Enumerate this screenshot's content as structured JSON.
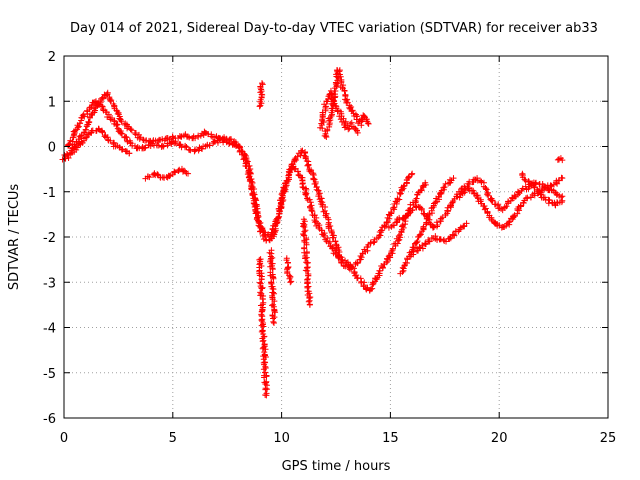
{
  "chart_data": {
    "type": "scatter",
    "title": "Day 014 of 2021, Sidereal Day-to-day VTEC variation (SDTVAR) for receiver ab33",
    "xlabel": "GPS time / hours",
    "ylabel": "SDTVAR / TECUs",
    "xlim": [
      0,
      25
    ],
    "ylim": [
      -6,
      2
    ],
    "xticks": [
      0,
      5,
      10,
      15,
      20,
      25
    ],
    "xtick_labels": [
      "0",
      "5",
      "10",
      "15",
      "20",
      "25"
    ],
    "yticks": [
      -6,
      -5,
      -4,
      -3,
      -2,
      -1,
      0,
      1,
      2
    ],
    "ytick_labels": [
      "-6",
      "-5",
      "-4",
      "-3",
      "-2",
      "-1",
      "0",
      "1",
      "2"
    ],
    "grid": true,
    "marker": "+",
    "series": [
      {
        "name": "SDTVAR",
        "color": "#ff0000",
        "tracks": [
          [
            [
              0.0,
              -0.2
            ],
            [
              0.3,
              -0.1
            ],
            [
              0.6,
              0.1
            ],
            [
              0.9,
              0.3
            ],
            [
              1.2,
              0.6
            ],
            [
              1.5,
              0.9
            ],
            [
              1.8,
              1.1
            ],
            [
              2.0,
              1.2
            ],
            [
              2.3,
              0.9
            ],
            [
              2.6,
              0.6
            ],
            [
              3.0,
              0.4
            ],
            [
              3.5,
              0.2
            ],
            [
              4.0,
              0.1
            ],
            [
              4.5,
              0.15
            ],
            [
              5.0,
              0.2
            ],
            [
              5.5,
              0.25
            ],
            [
              6.0,
              0.2
            ],
            [
              6.5,
              0.3
            ],
            [
              7.0,
              0.2
            ],
            [
              7.5,
              0.1
            ],
            [
              8.0,
              0.0
            ],
            [
              8.3,
              -0.2
            ],
            [
              8.5,
              -0.5
            ],
            [
              8.7,
              -1.0
            ],
            [
              8.9,
              -1.6
            ],
            [
              9.2,
              -1.9
            ],
            [
              9.5,
              -2.0
            ],
            [
              9.8,
              -1.6
            ],
            [
              10.1,
              -1.0
            ],
            [
              10.4,
              -0.5
            ],
            [
              10.7,
              -0.2
            ],
            [
              11.0,
              -0.1
            ],
            [
              11.3,
              -0.5
            ],
            [
              11.6,
              -0.9
            ],
            [
              11.9,
              -1.3
            ],
            [
              12.2,
              -1.8
            ],
            [
              12.5,
              -2.2
            ],
            [
              12.8,
              -2.5
            ],
            [
              13.1,
              -2.6
            ],
            [
              13.4,
              -2.8
            ],
            [
              13.7,
              -3.0
            ],
            [
              14.0,
              -3.2
            ],
            [
              14.3,
              -3.0
            ],
            [
              14.6,
              -2.7
            ],
            [
              15.0,
              -2.4
            ],
            [
              15.4,
              -2.0
            ],
            [
              15.8,
              -1.5
            ],
            [
              16.2,
              -1.1
            ],
            [
              16.6,
              -0.8
            ]
          ],
          [
            [
              0.2,
              0.0
            ],
            [
              0.5,
              0.3
            ],
            [
              0.8,
              0.6
            ],
            [
              1.1,
              0.8
            ],
            [
              1.4,
              1.0
            ],
            [
              1.7,
              0.9
            ],
            [
              2.0,
              0.7
            ],
            [
              2.4,
              0.5
            ],
            [
              2.8,
              0.2
            ],
            [
              3.2,
              0.0
            ],
            [
              3.6,
              -0.05
            ],
            [
              4.0,
              0.05
            ],
            [
              4.5,
              0.0
            ],
            [
              5.0,
              0.1
            ],
            [
              5.5,
              0.0
            ],
            [
              6.0,
              -0.1
            ],
            [
              6.5,
              0.0
            ],
            [
              7.0,
              0.1
            ],
            [
              7.4,
              0.2
            ],
            [
              7.8,
              0.1
            ],
            [
              8.2,
              -0.1
            ],
            [
              8.4,
              -0.4
            ],
            [
              8.6,
              -0.8
            ],
            [
              8.8,
              -1.3
            ],
            [
              9.0,
              -1.8
            ],
            [
              9.3,
              -2.1
            ],
            [
              9.6,
              -2.0
            ],
            [
              9.9,
              -1.4
            ],
            [
              10.2,
              -0.8
            ],
            [
              10.5,
              -0.4
            ],
            [
              10.8,
              -0.6
            ],
            [
              11.1,
              -1.0
            ],
            [
              11.4,
              -1.4
            ],
            [
              11.7,
              -1.8
            ],
            [
              12.0,
              -2.0
            ],
            [
              12.4,
              -2.3
            ],
            [
              12.8,
              -2.6
            ],
            [
              13.2,
              -2.7
            ],
            [
              13.6,
              -2.5
            ],
            [
              14.0,
              -2.2
            ],
            [
              14.4,
              -2.0
            ],
            [
              14.8,
              -1.7
            ],
            [
              15.2,
              -1.3
            ],
            [
              15.6,
              -0.9
            ],
            [
              16.0,
              -0.6
            ]
          ],
          [
            [
              0.0,
              -0.3
            ],
            [
              0.4,
              -0.1
            ],
            [
              0.8,
              0.1
            ],
            [
              1.2,
              0.3
            ],
            [
              1.6,
              0.4
            ],
            [
              2.0,
              0.2
            ],
            [
              2.4,
              0.0
            ],
            [
              2.8,
              -0.1
            ],
            [
              3.0,
              -0.15
            ]
          ],
          [
            [
              3.8,
              -0.7
            ],
            [
              4.2,
              -0.6
            ],
            [
              4.6,
              -0.7
            ],
            [
              5.0,
              -0.6
            ],
            [
              5.4,
              -0.5
            ],
            [
              5.7,
              -0.6
            ]
          ],
          [
            [
              9.0,
              0.9
            ],
            [
              9.05,
              1.1
            ],
            [
              9.1,
              1.4
            ]
          ],
          [
            [
              9.0,
              -2.5
            ],
            [
              9.05,
              -3.0
            ],
            [
              9.1,
              -3.5
            ],
            [
              9.15,
              -4.0
            ],
            [
              9.2,
              -4.5
            ],
            [
              9.25,
              -5.0
            ],
            [
              9.3,
              -5.5
            ]
          ],
          [
            [
              9.5,
              -2.3
            ],
            [
              9.55,
              -2.8
            ],
            [
              9.6,
              -3.3
            ],
            [
              9.65,
              -3.9
            ]
          ],
          [
            [
              10.2,
              -2.5
            ],
            [
              10.4,
              -3.0
            ]
          ],
          [
            [
              11.0,
              -1.6
            ],
            [
              11.1,
              -2.3
            ],
            [
              11.2,
              -2.9
            ],
            [
              11.3,
              -3.5
            ]
          ],
          [
            [
              12.0,
              0.2
            ],
            [
              12.2,
              0.6
            ],
            [
              12.4,
              1.1
            ],
            [
              12.5,
              1.4
            ],
            [
              12.6,
              1.7
            ],
            [
              12.8,
              1.3
            ],
            [
              13.0,
              1.0
            ],
            [
              13.2,
              0.8
            ],
            [
              13.4,
              0.7
            ],
            [
              13.6,
              0.5
            ],
            [
              13.8,
              0.7
            ],
            [
              14.0,
              0.5
            ]
          ],
          [
            [
              11.8,
              0.4
            ],
            [
              12.0,
              0.9
            ],
            [
              12.2,
              1.2
            ],
            [
              12.4,
              1.0
            ],
            [
              12.6,
              0.8
            ],
            [
              12.8,
              0.6
            ],
            [
              13.0,
              0.4
            ],
            [
              13.2,
              0.5
            ],
            [
              13.5,
              0.3
            ]
          ],
          [
            [
              15.0,
              -1.8
            ],
            [
              15.4,
              -1.6
            ],
            [
              15.8,
              -1.5
            ],
            [
              16.2,
              -1.3
            ],
            [
              16.6,
              -1.5
            ],
            [
              17.0,
              -1.8
            ],
            [
              17.4,
              -1.6
            ],
            [
              17.8,
              -1.3
            ],
            [
              18.2,
              -1.0
            ],
            [
              18.6,
              -0.8
            ],
            [
              19.0,
              -0.7
            ],
            [
              19.3,
              -0.8
            ]
          ],
          [
            [
              15.5,
              -2.8
            ],
            [
              15.9,
              -2.4
            ],
            [
              16.3,
              -2.0
            ],
            [
              16.7,
              -1.6
            ],
            [
              17.1,
              -1.2
            ],
            [
              17.5,
              -0.9
            ],
            [
              17.9,
              -0.7
            ]
          ],
          [
            [
              16.0,
              -2.4
            ],
            [
              16.5,
              -2.2
            ],
            [
              17.0,
              -2.0
            ],
            [
              17.5,
              -2.1
            ],
            [
              18.0,
              -1.9
            ],
            [
              18.5,
              -1.7
            ]
          ],
          [
            [
              18.2,
              -1.1
            ],
            [
              18.6,
              -0.9
            ],
            [
              19.0,
              -1.1
            ],
            [
              19.4,
              -1.4
            ],
            [
              19.8,
              -1.7
            ],
            [
              20.2,
              -1.8
            ],
            [
              20.6,
              -1.6
            ],
            [
              21.0,
              -1.3
            ],
            [
              21.4,
              -1.1
            ],
            [
              21.8,
              -1.0
            ],
            [
              22.2,
              -0.9
            ],
            [
              22.6,
              -0.8
            ],
            [
              22.9,
              -0.7
            ]
          ],
          [
            [
              19.3,
              -0.9
            ],
            [
              19.7,
              -1.2
            ],
            [
              20.1,
              -1.4
            ],
            [
              20.5,
              -1.2
            ],
            [
              20.9,
              -1.0
            ],
            [
              21.3,
              -0.9
            ],
            [
              21.7,
              -0.8
            ],
            [
              22.1,
              -0.9
            ],
            [
              22.5,
              -1.0
            ],
            [
              22.9,
              -1.1
            ]
          ],
          [
            [
              21.0,
              -0.6
            ],
            [
              21.4,
              -0.8
            ],
            [
              21.8,
              -1.0
            ],
            [
              22.2,
              -1.2
            ],
            [
              22.6,
              -1.3
            ],
            [
              22.9,
              -1.2
            ]
          ],
          [
            [
              22.7,
              -0.3
            ],
            [
              22.8,
              -0.25
            ],
            [
              22.9,
              -0.3
            ]
          ]
        ]
      }
    ]
  }
}
